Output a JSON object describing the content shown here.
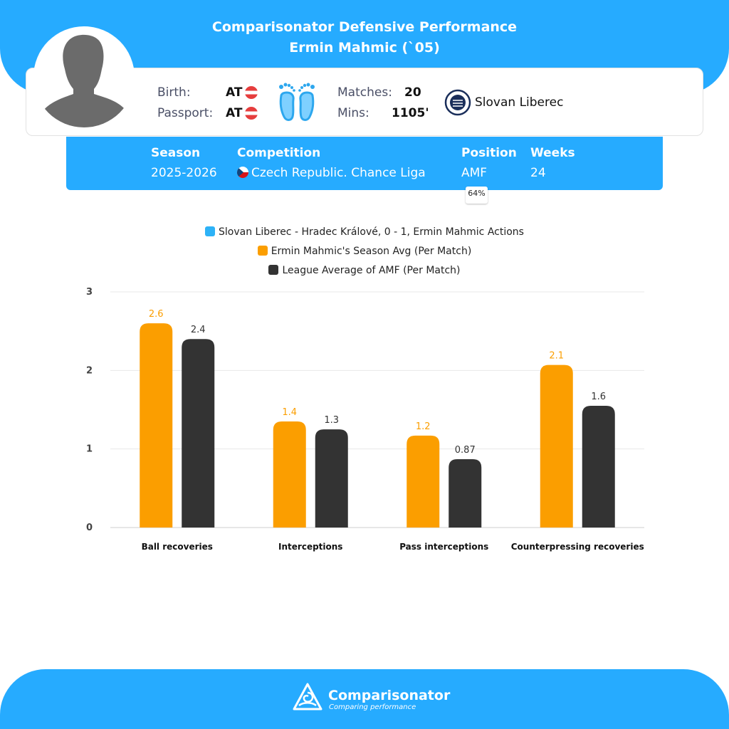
{
  "header": {
    "title": "Comparisonator Defensive Performance",
    "subtitle": "Ermin Mahmic (`05)"
  },
  "player": {
    "birth_label": "Birth:",
    "birth_value": "AT",
    "passport_label": "Passport:",
    "passport_value": "AT",
    "matches_label": "Matches:",
    "matches_value": "20",
    "mins_label": "Mins:",
    "mins_value": "1105'",
    "club": "Slovan Liberec",
    "icons": {
      "avatar": "player-silhouette-icon",
      "feet": "feet-icon",
      "club": "club-crest-icon"
    }
  },
  "season_info": {
    "season_label": "Season",
    "season_value": "2025-2026",
    "competition_label": "Competition",
    "competition_value": "Czech Republic. Chance Liga",
    "position_label": "Position",
    "position_value": "AMF",
    "position_pct": "64%",
    "weeks_label": "Weeks",
    "weeks_value": "24"
  },
  "colors": {
    "brand": "#26abff",
    "series_match": "#2db2f7",
    "series_season": "#fb9e00",
    "series_league": "#333333"
  },
  "chart_data": {
    "type": "bar",
    "categories": [
      "Ball recoveries",
      "Interceptions",
      "Pass interceptions",
      "Counterpressing recoveries"
    ],
    "series": [
      {
        "name": "Slovan Liberec - Hradec Králové, 0 - 1, Ermin Mahmic Actions",
        "values": [
          0,
          0,
          0,
          0
        ],
        "labels": [
          "",
          "",
          "",
          ""
        ]
      },
      {
        "name": "Ermin Mahmic's Season Avg (Per Match)",
        "values": [
          2.6,
          1.35,
          1.17,
          2.07
        ],
        "labels": [
          "2.6",
          "1.4",
          "1.2",
          "2.1"
        ]
      },
      {
        "name": "League Average of AMF (Per Match)",
        "values": [
          2.4,
          1.25,
          0.87,
          1.55
        ],
        "labels": [
          "2.4",
          "1.3",
          "0.87",
          "1.6"
        ]
      }
    ],
    "yticks": [
      "0",
      "1",
      "2",
      "3"
    ],
    "ylim": [
      0,
      3
    ],
    "grid": true,
    "legend_position": "top"
  },
  "footer": {
    "brand_name": "Comparisonator",
    "brand_tagline": "Comparing performance",
    "logo_icon": "comparisonator-logo-icon"
  }
}
